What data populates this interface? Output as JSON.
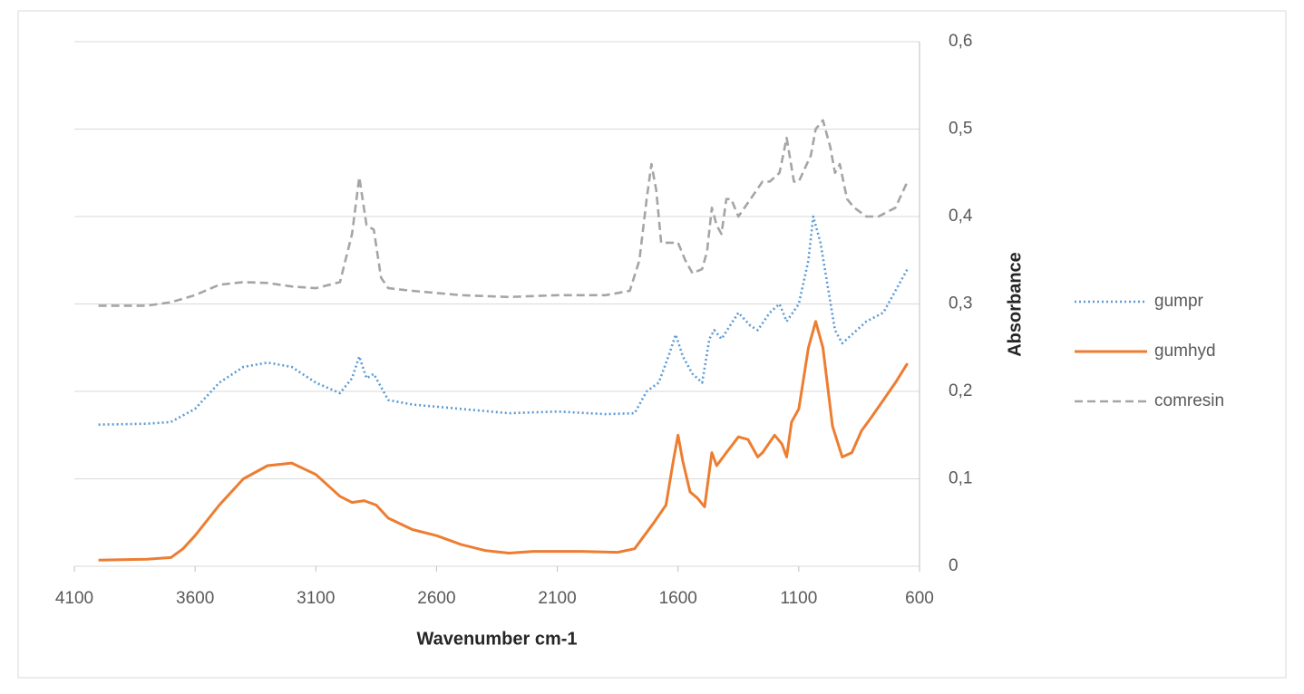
{
  "chart_data": {
    "type": "line",
    "x_label": "Wavenumber cm-1",
    "y_label": "Absorbance",
    "xlim": [
      4100,
      600
    ],
    "xticks": [
      4100,
      3600,
      3100,
      2600,
      2100,
      1600,
      1100,
      600
    ],
    "ylim": [
      0,
      0.6
    ],
    "yticks": [
      0,
      {
        "value": 0.1,
        "label": "0,1"
      },
      {
        "value": 0.2,
        "label": "0,2"
      },
      {
        "value": 0.3,
        "label": "0,3"
      },
      {
        "value": 0.4,
        "label": "0,4"
      },
      {
        "value": 0.5,
        "label": "0,5"
      },
      {
        "value": 0.6,
        "label": "0,6"
      }
    ],
    "grid": true,
    "legend": "right",
    "series": [
      {
        "name": "gumpr",
        "color": "#5b9bd5",
        "dash": "dotted",
        "x": [
          4000,
          3800,
          3700,
          3600,
          3500,
          3400,
          3300,
          3200,
          3100,
          3000,
          2950,
          2920,
          2890,
          2860,
          2800,
          2700,
          2500,
          2300,
          2100,
          1900,
          1780,
          1730,
          1680,
          1640,
          1610,
          1580,
          1540,
          1500,
          1470,
          1450,
          1420,
          1350,
          1300,
          1270,
          1220,
          1180,
          1150,
          1100,
          1060,
          1040,
          1010,
          980,
          950,
          920,
          880,
          820,
          750,
          700,
          650
        ],
        "values": [
          0.162,
          0.163,
          0.165,
          0.18,
          0.21,
          0.228,
          0.233,
          0.228,
          0.21,
          0.198,
          0.215,
          0.24,
          0.215,
          0.22,
          0.19,
          0.185,
          0.18,
          0.175,
          0.177,
          0.174,
          0.175,
          0.2,
          0.21,
          0.24,
          0.265,
          0.24,
          0.22,
          0.21,
          0.26,
          0.27,
          0.26,
          0.29,
          0.275,
          0.27,
          0.29,
          0.3,
          0.28,
          0.3,
          0.35,
          0.4,
          0.37,
          0.32,
          0.27,
          0.255,
          0.265,
          0.28,
          0.29,
          0.315,
          0.34
        ]
      },
      {
        "name": "gumhyd",
        "color": "#ed7d31",
        "dash": "solid",
        "x": [
          4000,
          3800,
          3700,
          3650,
          3600,
          3500,
          3400,
          3300,
          3200,
          3100,
          3000,
          2950,
          2900,
          2850,
          2800,
          2700,
          2600,
          2500,
          2400,
          2300,
          2200,
          2000,
          1850,
          1780,
          1700,
          1650,
          1620,
          1600,
          1580,
          1550,
          1520,
          1490,
          1460,
          1440,
          1400,
          1350,
          1310,
          1270,
          1250,
          1200,
          1170,
          1150,
          1130,
          1100,
          1060,
          1030,
          1000,
          960,
          920,
          880,
          840,
          800,
          750,
          700,
          650
        ],
        "values": [
          0.007,
          0.008,
          0.01,
          0.02,
          0.035,
          0.07,
          0.1,
          0.115,
          0.118,
          0.105,
          0.08,
          0.073,
          0.075,
          0.07,
          0.055,
          0.042,
          0.035,
          0.025,
          0.018,
          0.015,
          0.017,
          0.017,
          0.016,
          0.02,
          0.05,
          0.07,
          0.12,
          0.15,
          0.12,
          0.085,
          0.078,
          0.068,
          0.13,
          0.115,
          0.13,
          0.148,
          0.145,
          0.125,
          0.13,
          0.15,
          0.14,
          0.125,
          0.165,
          0.18,
          0.25,
          0.28,
          0.25,
          0.16,
          0.125,
          0.13,
          0.155,
          0.17,
          0.19,
          0.21,
          0.232
        ]
      },
      {
        "name": "comresin",
        "color": "#a5a5a5",
        "dash": "dashed",
        "x": [
          4000,
          3800,
          3700,
          3600,
          3500,
          3400,
          3300,
          3200,
          3100,
          3000,
          2950,
          2920,
          2890,
          2860,
          2830,
          2800,
          2700,
          2500,
          2300,
          2100,
          1900,
          1800,
          1760,
          1730,
          1710,
          1690,
          1670,
          1640,
          1600,
          1570,
          1540,
          1500,
          1480,
          1460,
          1440,
          1420,
          1400,
          1380,
          1350,
          1300,
          1250,
          1220,
          1180,
          1150,
          1120,
          1100,
          1050,
          1030,
          1000,
          970,
          950,
          930,
          900,
          870,
          820,
          770,
          700,
          650
        ],
        "values": [
          0.298,
          0.298,
          0.302,
          0.31,
          0.322,
          0.325,
          0.324,
          0.32,
          0.318,
          0.325,
          0.38,
          0.445,
          0.39,
          0.385,
          0.33,
          0.318,
          0.315,
          0.31,
          0.308,
          0.31,
          0.31,
          0.315,
          0.35,
          0.42,
          0.46,
          0.43,
          0.37,
          0.37,
          0.37,
          0.35,
          0.335,
          0.34,
          0.36,
          0.41,
          0.39,
          0.38,
          0.42,
          0.42,
          0.4,
          0.42,
          0.44,
          0.44,
          0.45,
          0.49,
          0.44,
          0.44,
          0.47,
          0.5,
          0.51,
          0.48,
          0.45,
          0.46,
          0.42,
          0.41,
          0.4,
          0.4,
          0.41,
          0.44
        ]
      }
    ]
  }
}
